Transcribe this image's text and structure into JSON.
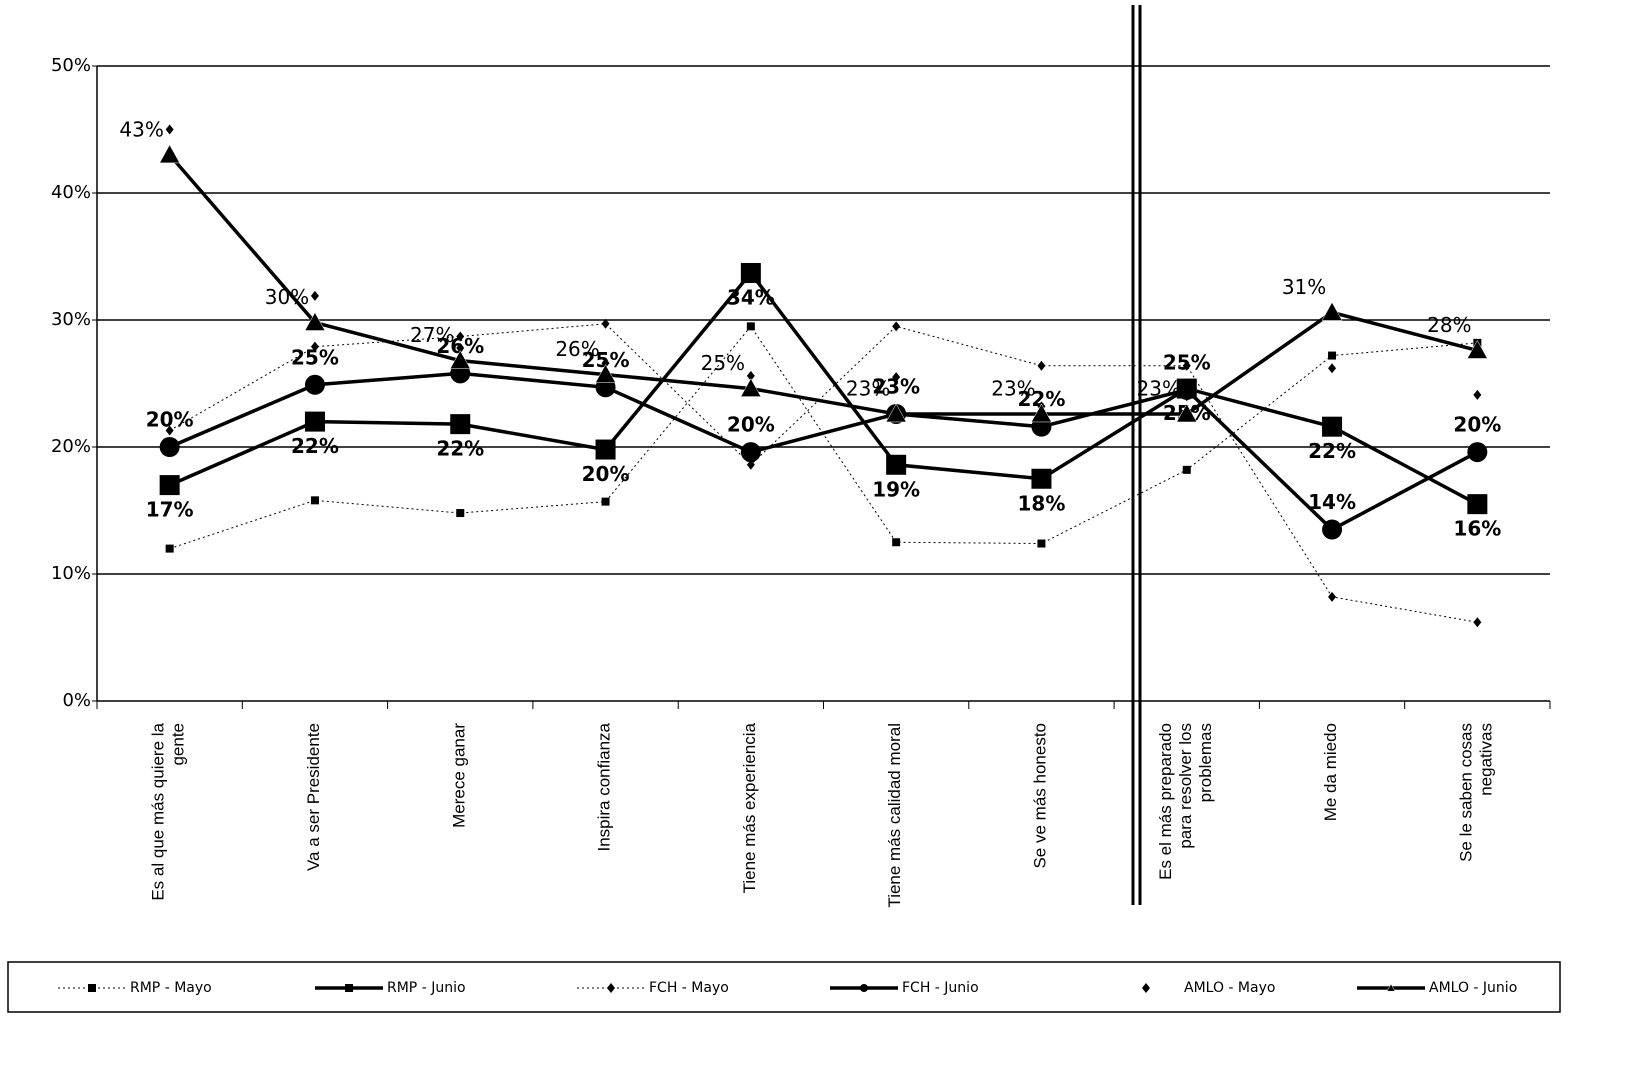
{
  "chart_data": {
    "type": "line",
    "categories": [
      "Es al que más quiere la gente",
      "Va a ser Presidente",
      "Merece ganar",
      "Inspira confianza",
      "Tiene más experiencia",
      "Tiene más calidad moral",
      "Se ve más honesto",
      "Es el más preparado para resolver los problemas",
      "Me da miedo",
      "Se le saben cosas negativas"
    ],
    "ylim": [
      0,
      50
    ],
    "yticks": [
      {
        "value": 0,
        "label": "0%"
      },
      {
        "value": 10,
        "label": "10%"
      },
      {
        "value": 20,
        "label": "20%"
      },
      {
        "value": 30,
        "label": "30%"
      },
      {
        "value": 40,
        "label": "40%"
      },
      {
        "value": 50,
        "label": "50%"
      }
    ],
    "grid": true,
    "legend": "bottom",
    "series": [
      {
        "name": "RMP - Mayo",
        "color": "#000000",
        "style": "dotted",
        "marker": "square",
        "values": [
          12,
          15.8,
          14.8,
          15.7,
          29.5,
          12.5,
          12.4,
          18.2,
          27.2,
          28.2
        ]
      },
      {
        "name": "RMP - Junio",
        "color": "#000000",
        "style": "solid",
        "marker": "square",
        "values": [
          17,
          22,
          21.8,
          19.8,
          33.7,
          18.6,
          17.5,
          24.6,
          21.6,
          15.5
        ],
        "value_labels": [
          "17%",
          "22%",
          "22%",
          "20%",
          "34%",
          "19%",
          "18%",
          "25%",
          "22%",
          "16%"
        ]
      },
      {
        "name": "FCH - Mayo",
        "color": "#000000",
        "style": "dotted",
        "marker": "diamond",
        "values": [
          21.3,
          27.9,
          28.7,
          29.7,
          18.6,
          29.5,
          26.4,
          26.4,
          8.2,
          6.2
        ]
      },
      {
        "name": "FCH - Junio",
        "color": "#000000",
        "style": "solid",
        "marker": "circle",
        "values": [
          20,
          24.9,
          25.8,
          24.7,
          19.6,
          22.6,
          21.6,
          24.5,
          13.5,
          19.6
        ],
        "value_labels": [
          "20%",
          "25%",
          "26%",
          "25%",
          "20%",
          "23%",
          "22%",
          "25%",
          "14%",
          "20%"
        ]
      },
      {
        "name": "AMLO - Mayo",
        "color": "#000000",
        "style": "none",
        "marker": "diamond",
        "values": [
          45,
          31.9,
          27.8,
          26.6,
          25.6,
          25.5,
          23.2,
          24,
          26.2,
          24.1
        ]
      },
      {
        "name": "AMLO - Junio",
        "color": "#000000",
        "style": "solid",
        "marker": "triangle",
        "values": [
          43,
          29.8,
          26.8,
          25.7,
          24.6,
          22.6,
          22.6,
          22.6,
          30.6,
          27.6
        ],
        "value_labels": [
          "43%",
          "30%",
          "27%",
          "26%",
          "25%",
          "23%",
          "23%",
          "23%",
          "31%",
          "28%"
        ]
      }
    ]
  }
}
